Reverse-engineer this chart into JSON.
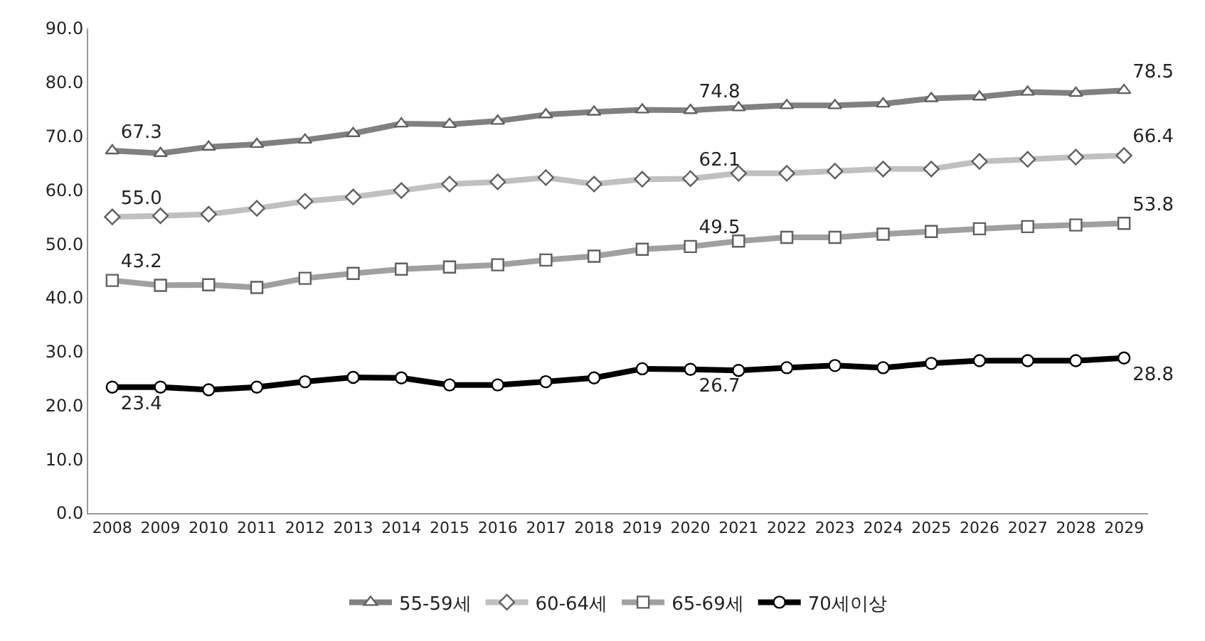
{
  "chart_data": {
    "type": "line",
    "categories": [
      "2008",
      "2009",
      "2010",
      "2011",
      "2012",
      "2013",
      "2014",
      "2015",
      "2016",
      "2017",
      "2018",
      "2019",
      "2020",
      "2021",
      "2022",
      "2023",
      "2024",
      "2025",
      "2026",
      "2027",
      "2028",
      "2029"
    ],
    "series": [
      {
        "name": "55-59세",
        "color": "#808080",
        "marker": "triangle",
        "values": [
          67.3,
          66.8,
          68.0,
          68.5,
          69.3,
          70.5,
          72.3,
          72.2,
          72.8,
          74.0,
          74.5,
          74.9,
          74.8,
          75.3,
          75.7,
          75.7,
          76.0,
          77.0,
          77.3,
          78.2,
          78.0,
          78.5
        ],
        "value_labels": [
          "67.3",
          null,
          null,
          null,
          null,
          null,
          null,
          null,
          null,
          null,
          null,
          null,
          "74.8",
          null,
          null,
          null,
          null,
          null,
          null,
          null,
          null,
          "78.5"
        ]
      },
      {
        "name": "60-64세",
        "color": "#c0c0c0",
        "marker": "diamond",
        "values": [
          55.0,
          55.2,
          55.5,
          56.6,
          57.9,
          58.7,
          59.9,
          61.1,
          61.5,
          62.3,
          61.1,
          62.0,
          62.1,
          63.1,
          63.1,
          63.5,
          63.9,
          63.9,
          65.3,
          65.7,
          66.1,
          66.4
        ],
        "value_labels": [
          "55.0",
          null,
          null,
          null,
          null,
          null,
          null,
          null,
          null,
          null,
          null,
          null,
          "62.1",
          null,
          null,
          null,
          null,
          null,
          null,
          null,
          null,
          "66.4"
        ]
      },
      {
        "name": "65-69세",
        "color": "#a0a0a0",
        "marker": "square",
        "values": [
          43.2,
          42.3,
          42.4,
          41.9,
          43.6,
          44.5,
          45.3,
          45.7,
          46.1,
          47.0,
          47.7,
          49.0,
          49.5,
          50.5,
          51.2,
          51.2,
          51.8,
          52.3,
          52.8,
          53.2,
          53.5,
          53.8
        ],
        "value_labels": [
          "43.2",
          null,
          null,
          null,
          null,
          null,
          null,
          null,
          null,
          null,
          null,
          null,
          "49.5",
          null,
          null,
          null,
          null,
          null,
          null,
          null,
          null,
          "53.8"
        ]
      },
      {
        "name": "70세이상",
        "color": "#000000",
        "marker": "circle",
        "values": [
          23.4,
          23.4,
          22.9,
          23.4,
          24.4,
          25.2,
          25.1,
          23.8,
          23.8,
          24.4,
          25.1,
          26.8,
          26.7,
          26.5,
          27.0,
          27.4,
          27.0,
          27.8,
          28.3,
          28.3,
          28.3,
          28.8
        ],
        "value_labels": [
          "23.4",
          null,
          null,
          null,
          null,
          null,
          null,
          null,
          null,
          null,
          null,
          null,
          "26.7",
          null,
          null,
          null,
          null,
          null,
          null,
          null,
          null,
          "28.8"
        ]
      }
    ],
    "ylim": [
      0,
      90
    ],
    "yticks": [
      {
        "value": 0,
        "label": "0.0"
      },
      {
        "value": 10,
        "label": "10.0"
      },
      {
        "value": 20,
        "label": "20.0"
      },
      {
        "value": 30,
        "label": "30.0"
      },
      {
        "value": 40,
        "label": "40.0"
      },
      {
        "value": 50,
        "label": "50.0"
      },
      {
        "value": 60,
        "label": "60.0"
      },
      {
        "value": 70,
        "label": "70.0"
      },
      {
        "value": 80,
        "label": "80.0"
      },
      {
        "value": 90,
        "label": "90.0"
      }
    ],
    "grid": false,
    "legend": "bottom",
    "line_style": "solid"
  }
}
